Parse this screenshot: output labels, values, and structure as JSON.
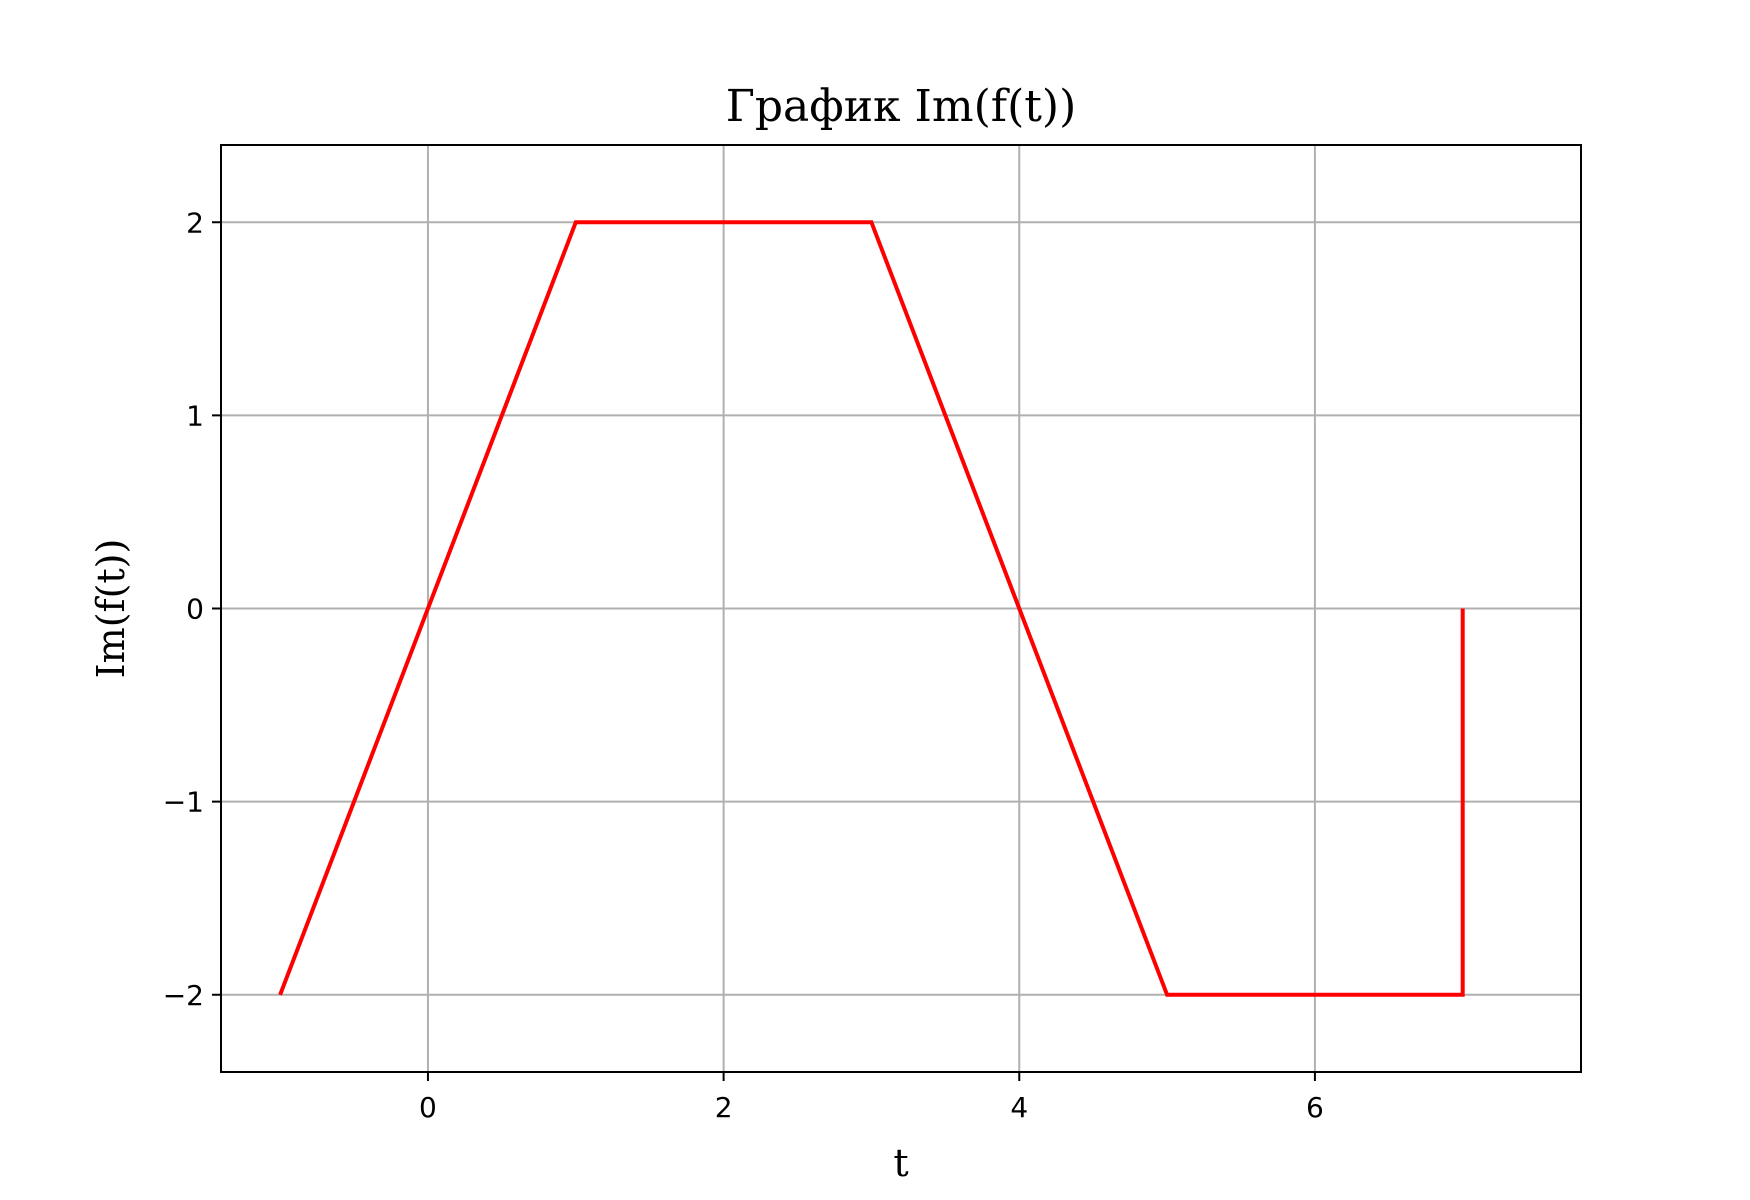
{
  "chart_data": {
    "type": "line",
    "title": "График Im(f(t))",
    "xlabel": "t",
    "ylabel": "Im(f(t))",
    "xlim": [
      -1.4,
      7.8
    ],
    "ylim": [
      -2.4,
      2.4
    ],
    "xticks": [
      0,
      2,
      4,
      6
    ],
    "yticks": [
      -2,
      -1,
      0,
      1,
      2
    ],
    "xtick_labels": [
      "0",
      "2",
      "4",
      "6"
    ],
    "ytick_labels": [
      "−2",
      "−1",
      "0",
      "1",
      "2"
    ],
    "grid": true,
    "series": [
      {
        "color": "#ff0000",
        "x": [
          -1,
          1,
          3,
          5,
          7,
          7
        ],
        "y": [
          -2,
          2,
          2,
          -2,
          -2,
          0
        ]
      }
    ]
  }
}
